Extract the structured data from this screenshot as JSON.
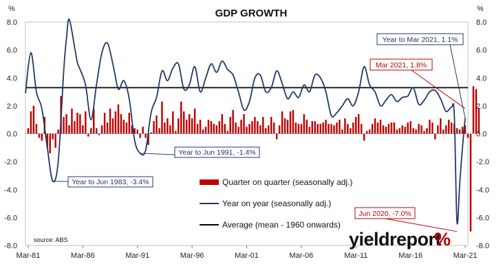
{
  "chart_data": {
    "type": "bar+line",
    "title": "GDP GROWTH",
    "y_unit_left": "%",
    "y_unit_right": "%",
    "ylim": [
      -8,
      8
    ],
    "y_ticks": [
      8.0,
      6.0,
      4.0,
      2.0,
      0.0,
      -2.0,
      -4.0,
      -6.0,
      -8.0
    ],
    "y_tick_labels": [
      "8.0",
      "6.0",
      "4.0",
      "2.0",
      "0.0",
      "-2.0",
      "-4.0",
      "-6.0",
      "-8.0"
    ],
    "x_tick_labels": [
      "Mar-81",
      "Mar-86",
      "Mar-91",
      "Mar-96",
      "Mar-01",
      "Mar-06",
      "Mar-11",
      "Mar-16",
      "Mar-21"
    ],
    "x_start_year": 1980.75,
    "x_end_year": 2021.25,
    "series": [
      {
        "name": "Quarter on quarter (seasonally adj.)",
        "type": "bar",
        "color": "#c00000",
        "start_year": 1981.0,
        "step_years": 0.25,
        "values": [
          0.4,
          1.6,
          2.0,
          0.7,
          -0.3,
          -0.5,
          1.2,
          -1.0,
          -1.4,
          -0.4,
          -1.0,
          0.3,
          2.7,
          1.2,
          1.4,
          0.6,
          1.8,
          0.9,
          1.5,
          1.4,
          0.6,
          1.6,
          -0.2,
          0.4,
          1.8,
          0.4,
          -0.1,
          0.6,
          1.5,
          0.8,
          1.8,
          1.1,
          1.6,
          2.1,
          1.4,
          1.0,
          0.8,
          1.5,
          0.6,
          0.4,
          0.3,
          -0.3,
          0.5,
          -0.3,
          -0.8,
          0.1,
          0.9,
          1.3,
          0.4,
          2.3,
          0.8,
          1.1,
          0.6,
          1.6,
          0.2,
          1.1,
          2.3,
          1.6,
          1.0,
          1.4,
          1.1,
          1.8,
          0.7,
          1.0,
          0.3,
          0.5,
          1.0,
          0.9,
          0.7,
          0.6,
          0.9,
          1.4,
          0.7,
          0.2,
          1.2,
          1.7,
          0.8,
          0.5,
          1.0,
          1.4,
          0.5,
          0.7,
          0.9,
          1.2,
          0.9,
          0.6,
          1.2,
          0.4,
          0.6,
          1.2,
          0.8,
          -0.4,
          0.6,
          1.6,
          1.1,
          1.0,
          1.6,
          1.7,
          0.8,
          0.7,
          0.7,
          1.4,
          1.0,
          0.5,
          0.9,
          0.9,
          0.7,
          0.7,
          0.8,
          1.0,
          0.7,
          0.7,
          0.6,
          0.8,
          1.0,
          0.3,
          1.1,
          0.7,
          0.4,
          0.8,
          1.2,
          1.4,
          0.7,
          -0.5,
          0.2,
          0.3,
          0.7,
          1.1,
          0.8,
          1.0,
          0.6,
          0.5,
          0.7,
          0.8,
          0.8,
          0.3,
          0.4,
          0.6,
          0.5,
          0.8,
          0.9,
          0.4,
          0.3,
          0.7,
          0.6,
          0.2,
          0.4,
          1.0,
          0.8,
          -0.4,
          0.6,
          1.1,
          0.3,
          0.6,
          1.0,
          0.8,
          0.7,
          0.4,
          0.3,
          0.5,
          0.6,
          -0.3,
          -7.0,
          3.4,
          3.2,
          1.8
        ]
      },
      {
        "name": "Year on year (seasonally adj.)",
        "type": "line",
        "color": "#1f3864",
        "points": [
          [
            1980.75,
            2.9
          ],
          [
            1981.25,
            5.8
          ],
          [
            1981.75,
            3.0
          ],
          [
            1982.25,
            1.8
          ],
          [
            1982.75,
            -1.0
          ],
          [
            1983.25,
            -3.4
          ],
          [
            1983.75,
            -2.0
          ],
          [
            1984.25,
            4.5
          ],
          [
            1984.5,
            6.8
          ],
          [
            1984.75,
            8.2
          ],
          [
            1985.25,
            6.2
          ],
          [
            1985.5,
            5.1
          ],
          [
            1985.75,
            4.6
          ],
          [
            1986.25,
            3.5
          ],
          [
            1986.75,
            1.0
          ],
          [
            1987.25,
            3.5
          ],
          [
            1987.75,
            5.8
          ],
          [
            1988.25,
            6.5
          ],
          [
            1988.75,
            5.0
          ],
          [
            1989.25,
            3.2
          ],
          [
            1989.75,
            3.8
          ],
          [
            1990.25,
            2.5
          ],
          [
            1990.75,
            -0.5
          ],
          [
            1991.25,
            -1.4
          ],
          [
            1991.75,
            -1.2
          ],
          [
            1992.25,
            1.5
          ],
          [
            1992.75,
            2.6
          ],
          [
            1993.25,
            4.5
          ],
          [
            1993.75,
            3.8
          ],
          [
            1994.25,
            4.7
          ],
          [
            1994.75,
            5.0
          ],
          [
            1995.25,
            3.2
          ],
          [
            1995.75,
            3.5
          ],
          [
            1996.25,
            4.8
          ],
          [
            1996.75,
            3.0
          ],
          [
            1997.25,
            4.0
          ],
          [
            1997.75,
            5.0
          ],
          [
            1998.25,
            4.4
          ],
          [
            1998.75,
            5.2
          ],
          [
            1999.25,
            4.6
          ],
          [
            1999.75,
            4.2
          ],
          [
            2000.25,
            3.0
          ],
          [
            2000.75,
            1.7
          ],
          [
            2001.25,
            2.3
          ],
          [
            2001.75,
            4.0
          ],
          [
            2002.25,
            4.2
          ],
          [
            2002.75,
            3.0
          ],
          [
            2003.25,
            3.3
          ],
          [
            2003.75,
            4.5
          ],
          [
            2004.25,
            3.6
          ],
          [
            2004.75,
            2.5
          ],
          [
            2005.25,
            3.0
          ],
          [
            2005.75,
            2.6
          ],
          [
            2006.25,
            3.5
          ],
          [
            2006.75,
            3.0
          ],
          [
            2007.25,
            4.2
          ],
          [
            2007.75,
            4.0
          ],
          [
            2008.25,
            3.0
          ],
          [
            2008.75,
            1.3
          ],
          [
            2009.25,
            1.5
          ],
          [
            2009.75,
            2.0
          ],
          [
            2010.25,
            2.5
          ],
          [
            2010.75,
            2.0
          ],
          [
            2011.25,
            3.0
          ],
          [
            2011.75,
            4.8
          ],
          [
            2012.25,
            3.5
          ],
          [
            2012.75,
            3.0
          ],
          [
            2013.25,
            2.0
          ],
          [
            2013.75,
            2.4
          ],
          [
            2014.25,
            2.8
          ],
          [
            2014.75,
            2.3
          ],
          [
            2015.25,
            2.6
          ],
          [
            2015.75,
            2.7
          ],
          [
            2016.25,
            3.3
          ],
          [
            2016.75,
            2.1
          ],
          [
            2017.25,
            2.4
          ],
          [
            2017.75,
            3.0
          ],
          [
            2018.25,
            3.1
          ],
          [
            2018.75,
            2.5
          ],
          [
            2019.25,
            1.6
          ],
          [
            2019.75,
            1.9
          ],
          [
            2020.0,
            1.4
          ],
          [
            2020.25,
            -6.3
          ],
          [
            2020.5,
            -3.6
          ],
          [
            2020.75,
            -1.0
          ],
          [
            2021.0,
            1.1
          ]
        ]
      },
      {
        "name": "Average (mean - 1960 onwards)",
        "type": "line",
        "color": "#000000",
        "value": 3.3
      }
    ],
    "annotations": [
      {
        "text": "Year to Jun 1983, -3.4%",
        "x": 1983.25,
        "y": -3.4,
        "color": "#1f3864",
        "label_at": "right"
      },
      {
        "text": "Year to Jun 1991, -1.4%",
        "x": 1991.25,
        "y": -1.4,
        "color": "#1f3864",
        "label_at": "right"
      },
      {
        "text": "Year to Mar 2021, 1.1%",
        "x": 2021.0,
        "y": 1.1,
        "color": "#1f3864",
        "label_at": "upper-left"
      },
      {
        "text": "Mar 2021, 1.8%",
        "x": 2021.0,
        "y": 1.8,
        "color": "#c00000",
        "label_at": "upper-left"
      },
      {
        "text": "Jun 2020, -7.0%",
        "x": 2020.25,
        "y": -7.0,
        "color": "#c00000",
        "label_at": "upper-left"
      }
    ],
    "legend_position": "center-bottom",
    "source": "source: ABS"
  },
  "brand": {
    "name": "yieldreport",
    "symbol": "%"
  }
}
